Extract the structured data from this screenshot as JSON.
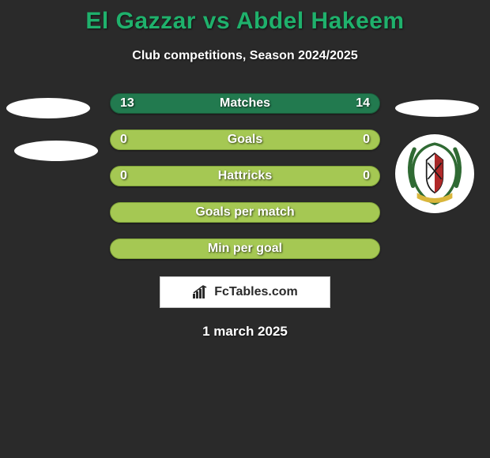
{
  "title": {
    "text": "El Gazzar vs Abdel Hakeem",
    "color": "#1fb16c",
    "fontsize": 30
  },
  "subtitle": "Club competitions, Season 2024/2025",
  "rows": [
    {
      "label": "Matches",
      "left": "13",
      "right": "14",
      "bg": "#227a4f",
      "border": "#1a5a3a"
    },
    {
      "label": "Goals",
      "left": "0",
      "right": "0",
      "bg": "#a5c853",
      "border": "#7fa23a"
    },
    {
      "label": "Hattricks",
      "left": "0",
      "right": "0",
      "bg": "#a5c853",
      "border": "#7fa23a"
    },
    {
      "label": "Goals per match",
      "left": "",
      "right": "",
      "bg": "#a5c853",
      "border": "#7fa23a"
    },
    {
      "label": "Min per goal",
      "left": "",
      "right": "",
      "bg": "#a5c853",
      "border": "#7fa23a"
    }
  ],
  "badge": {
    "text": "FcTables.com",
    "icon": "chart-icon"
  },
  "date": "1 march 2025",
  "crest": {
    "wreath_color": "#2f6a33",
    "ribbon_color": "#d9b63b",
    "shield_colors": [
      "#b02828",
      "#ffffff",
      "#1a1a1a"
    ]
  }
}
